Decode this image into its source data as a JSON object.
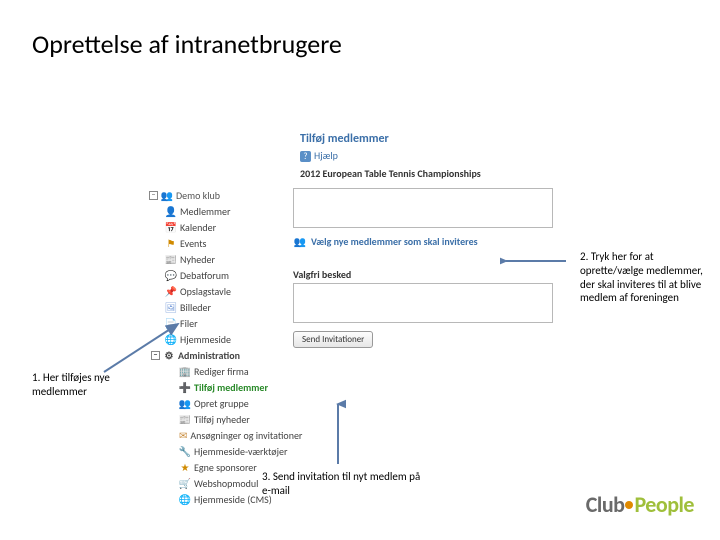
{
  "slide": {
    "title": "Oprettelse af intranetbrugere"
  },
  "app": {
    "header": "Tilføj medlemmer",
    "help_label": "Hjælp",
    "subtitle": "2012 European Table Tennis Championships",
    "tree": {
      "root_label": "Demo klub",
      "items": [
        {
          "label": "Medlemmer",
          "icon": "👤",
          "color": "#5a8fc7"
        },
        {
          "label": "Kalender",
          "icon": "📅",
          "color": "#5a8fc7"
        },
        {
          "label": "Events",
          "icon": "⚑",
          "color": "#d08a00"
        },
        {
          "label": "Nyheder",
          "icon": "📰",
          "color": "#888"
        },
        {
          "label": "Debatforum",
          "icon": "💬",
          "color": "#6aa84f"
        },
        {
          "label": "Opslagstavle",
          "icon": "📌",
          "color": "#c0504d"
        },
        {
          "label": "Billeder",
          "icon": "🖼",
          "color": "#7b9ed9"
        },
        {
          "label": "Filer",
          "icon": "📄",
          "color": "#888"
        },
        {
          "label": "Hjemmeside",
          "icon": "🌐",
          "color": "#5a8fc7"
        }
      ],
      "admin_label": "Administration",
      "admin_items": [
        {
          "label": "Rediger firma",
          "icon": "🏢",
          "color": "#6aa84f",
          "em": false
        },
        {
          "label": "Tilføj medlemmer",
          "icon": "➕",
          "color": "#2a8a2a",
          "em": true
        },
        {
          "label": "Opret gruppe",
          "icon": "👥",
          "color": "#888",
          "em": false
        },
        {
          "label": "Tilføj nyheder",
          "icon": "📰",
          "color": "#5a8fc7",
          "em": false
        },
        {
          "label": "Ansøgninger og invitationer",
          "icon": "✉",
          "color": "#c78a3a",
          "em": false
        },
        {
          "label": "Hjemmeside-værktøjer",
          "icon": "🔧",
          "color": "#888",
          "em": false
        },
        {
          "label": "Egne sponsorer",
          "icon": "★",
          "color": "#d08a00",
          "em": false
        },
        {
          "label": "Webshopmodul",
          "icon": "🛒",
          "color": "#5a8fc7",
          "em": false
        },
        {
          "label": "Hjemmeside (CMS)",
          "icon": "🌐",
          "color": "#5a8fc7",
          "em": false
        }
      ]
    },
    "content": {
      "action_link": "Vælg nye medlemmer som skal inviteres",
      "optional_label": "Valgfri besked",
      "send_button": "Send Invitationer"
    }
  },
  "callouts": {
    "c1": "1. Her tilføjes nye medlemmer",
    "c2": "2. Tryk her for at oprette/vælge medlemmer, der skal inviteres til at blive medlem af foreningen",
    "c3": "3. Send invitation til nyt medlem på e-mail"
  },
  "arrows": {
    "color": "#5b7ba8"
  },
  "logo": {
    "part1": "Club",
    "part2": "People"
  }
}
